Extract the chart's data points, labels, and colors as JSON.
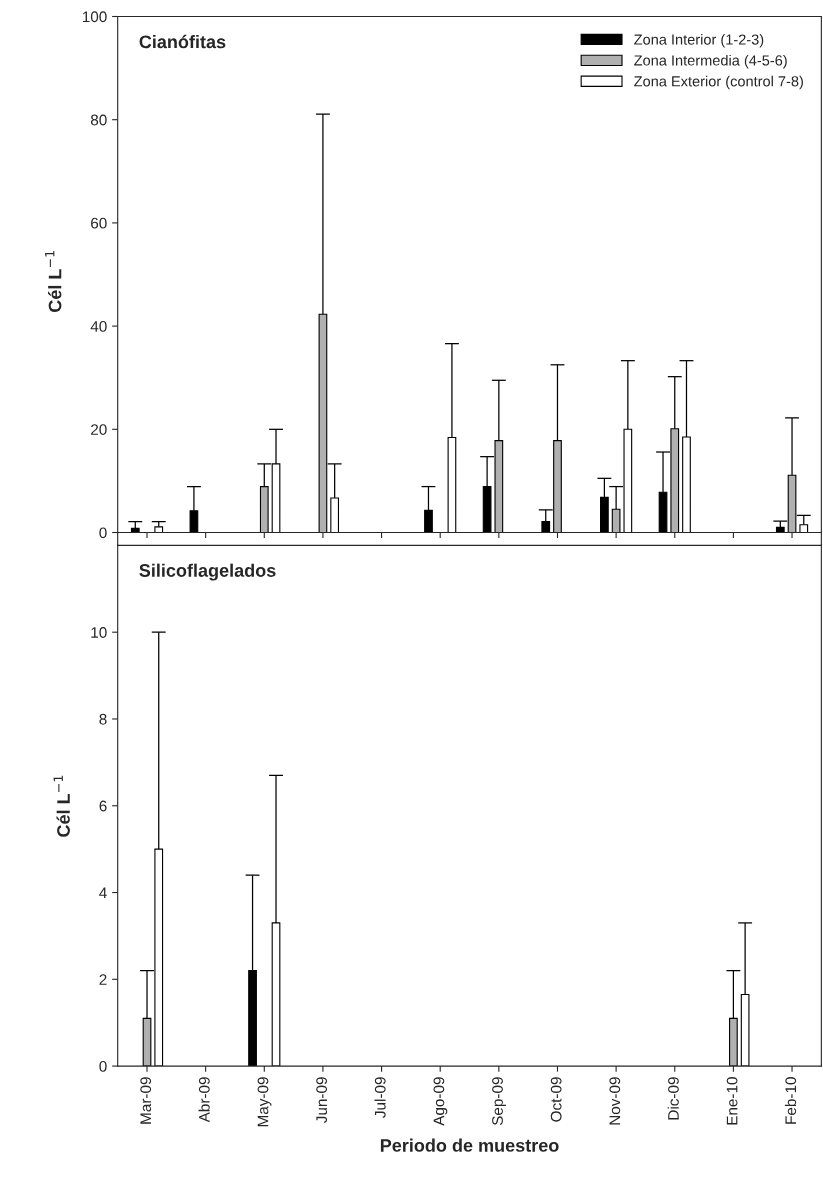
{
  "chart_data": [
    {
      "type": "bar",
      "title": "Cianófitas",
      "ylabel": "Cél L$^{−1}$",
      "categories": [
        null,
        null,
        null,
        null,
        null,
        null,
        null,
        null,
        null,
        null,
        null,
        null
      ],
      "ylim": [
        -2.5,
        100
      ],
      "yticks": [
        0,
        20,
        40,
        60,
        80,
        100
      ],
      "tick_labels": "y",
      "legend": "top right",
      "series": [
        {
          "name": "Zona Interior (1-2-3)",
          "color": "#000000",
          "values": [
            0.8,
            4.2,
            null,
            null,
            null,
            4.3,
            8.9,
            2.1,
            6.8,
            7.8,
            null,
            1.0
          ],
          "errors": [
            [
              0.8,
              2.1
            ],
            [
              4.2,
              8.9
            ],
            null,
            null,
            null,
            [
              4.3,
              8.9
            ],
            [
              8.9,
              14.7
            ],
            [
              2.1,
              4.4
            ],
            [
              6.8,
              10.5
            ],
            [
              7.8,
              15.6
            ],
            null,
            [
              1.0,
              2.2
            ]
          ]
        },
        {
          "name": "Zona Intermedia (4-5-6)",
          "color": "#b0b0b0",
          "values": [
            null,
            null,
            8.9,
            42.3,
            null,
            null,
            17.8,
            17.8,
            4.5,
            20.1,
            null,
            11.1
          ],
          "errors": [
            null,
            null,
            [
              8.9,
              13.3
            ],
            [
              42.3,
              81.1
            ],
            null,
            null,
            [
              17.8,
              29.5
            ],
            [
              17.8,
              32.5
            ],
            [
              4.5,
              8.9
            ],
            [
              20.1,
              30.2
            ],
            null,
            [
              11.1,
              22.2
            ]
          ]
        },
        {
          "name": "Zona Exterior (control 7-8)",
          "color": "#ffffff",
          "values": [
            1.1,
            null,
            13.3,
            6.7,
            null,
            18.4,
            null,
            null,
            20.0,
            18.5,
            null,
            1.5
          ],
          "errors": [
            [
              1.1,
              2.1
            ],
            null,
            [
              13.3,
              20.0
            ],
            [
              6.7,
              13.3
            ],
            null,
            [
              18.4,
              36.6
            ],
            null,
            null,
            [
              20.0,
              33.3
            ],
            [
              18.5,
              33.3
            ],
            null,
            [
              1.5,
              3.3
            ]
          ]
        }
      ]
    },
    {
      "type": "bar",
      "title": "Silicoflagelados",
      "ylabel": "Cél L$^{−1}$",
      "xlabel": "Periodo de muestreo",
      "categories": [
        "Mar-09",
        "Abr-09",
        "May-09",
        "Jun-09",
        "Jul-09",
        "Ago-09",
        "Sep-09",
        "Oct-09",
        "Nov-09",
        "Dic-09",
        "Ene-10",
        "Feb-10"
      ],
      "ylim": [
        0,
        12
      ],
      "yticks": [
        0,
        2,
        4,
        6,
        8,
        10
      ],
      "series": [
        {
          "color": "#000000",
          "values": [
            null,
            null,
            2.2,
            null,
            null,
            null,
            null,
            null,
            null,
            null,
            null,
            null
          ],
          "errors": [
            null,
            null,
            [
              2.2,
              4.4
            ],
            null,
            null,
            null,
            null,
            null,
            null,
            null,
            null,
            null
          ]
        },
        {
          "color": "#b0b0b0",
          "values": [
            1.1,
            null,
            null,
            null,
            null,
            null,
            null,
            null,
            null,
            null,
            1.1,
            null
          ],
          "errors": [
            [
              1.1,
              2.2
            ],
            null,
            null,
            null,
            null,
            null,
            null,
            null,
            null,
            null,
            [
              1.1,
              2.2
            ],
            null
          ]
        },
        {
          "color": "#ffffff",
          "values": [
            5.0,
            null,
            3.3,
            null,
            null,
            null,
            null,
            null,
            null,
            null,
            1.65,
            null
          ],
          "errors": [
            [
              5.0,
              10.0
            ],
            null,
            [
              3.3,
              6.7
            ],
            null,
            null,
            null,
            null,
            null,
            null,
            null,
            [
              1.65,
              3.3
            ],
            null
          ]
        }
      ]
    }
  ]
}
